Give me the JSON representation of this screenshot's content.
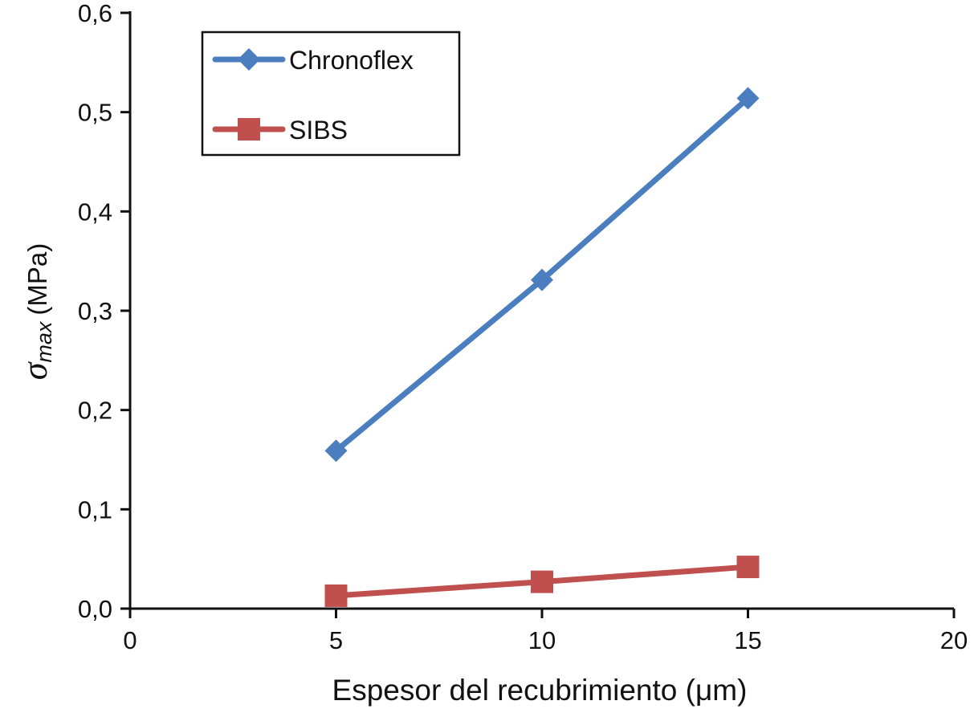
{
  "chart_data": {
    "type": "line",
    "xlabel": "Espesor del recubrimiento (μm)",
    "ylabel": {
      "symbol": "σ",
      "subscript": "max",
      "unit": "(MPa)"
    },
    "xlim": [
      0,
      20
    ],
    "ylim": [
      0,
      0.6
    ],
    "x_ticks": [
      0,
      5,
      10,
      15,
      20
    ],
    "x_tick_labels": [
      "0",
      "5",
      "10",
      "15",
      "20"
    ],
    "y_ticks": [
      0,
      0.1,
      0.2,
      0.3,
      0.4,
      0.5,
      0.6
    ],
    "y_tick_labels": [
      "0,0",
      "0,1",
      "0,2",
      "0,3",
      "0,4",
      "0,5",
      "0,6"
    ],
    "grid": false,
    "legend_position": "top-left",
    "series": [
      {
        "name": "Chronoflex",
        "color": "#4a7ebf",
        "marker": "diamond",
        "x": [
          5,
          10,
          15
        ],
        "y": [
          0.159,
          0.331,
          0.514
        ]
      },
      {
        "name": "SIBS",
        "color": "#c0504d",
        "marker": "square",
        "x": [
          5,
          10,
          15
        ],
        "y": [
          0.013,
          0.027,
          0.042
        ]
      }
    ]
  }
}
